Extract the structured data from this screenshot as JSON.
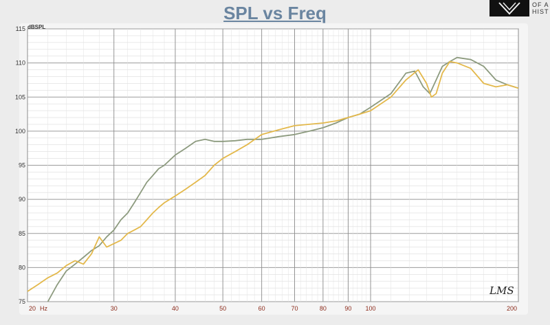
{
  "title": "SPL vs Freq",
  "logo": {
    "line1": "OF A",
    "line2": "HIST"
  },
  "signature": "LMS",
  "chart_data": {
    "type": "line",
    "title": "SPL vs Freq",
    "ylabel": "dBSPL",
    "xlabel": "",
    "x_unit": "Hz",
    "x_scale": "log",
    "xlim": [
      20,
      200
    ],
    "ylim": [
      75,
      115
    ],
    "grid": true,
    "y_ticks": [
      75,
      80,
      85,
      90,
      95,
      100,
      105,
      110,
      115
    ],
    "x_ticks": [
      20,
      30,
      40,
      50,
      60,
      70,
      80,
      90,
      100,
      200
    ],
    "x_tick_labels": [
      "20",
      "30",
      "40",
      "50",
      "60",
      "70",
      "80",
      "90",
      "100",
      "200"
    ],
    "series": [
      {
        "color": "#8c9a7e",
        "x": [
          22,
          23,
          24,
          25,
          26,
          27,
          28,
          29,
          30,
          31,
          32,
          33,
          34,
          35,
          36,
          37,
          38,
          40,
          42,
          44,
          46,
          48,
          50,
          53,
          56,
          60,
          65,
          70,
          75,
          80,
          85,
          90,
          95,
          100,
          110,
          118,
          123,
          128,
          132,
          136,
          140,
          145,
          150,
          160,
          170,
          180,
          190,
          200
        ],
        "y": [
          75,
          77.5,
          79.5,
          80.5,
          81.5,
          82.5,
          83.2,
          84.5,
          85.5,
          87,
          88,
          89.5,
          91,
          92.5,
          93.5,
          94.5,
          95,
          96.5,
          97.5,
          98.5,
          98.8,
          98.5,
          98.5,
          98.6,
          98.8,
          98.8,
          99.2,
          99.5,
          100,
          100.5,
          101.2,
          102,
          102.5,
          103.5,
          105.5,
          108.5,
          108.8,
          106.5,
          105.5,
          107.5,
          109.5,
          110.2,
          110.8,
          110.5,
          109.5,
          107.5,
          106.8,
          106.3
        ]
      },
      {
        "color": "#e3b84a",
        "x": [
          20,
          21,
          22,
          23,
          24,
          25,
          26,
          27,
          28,
          29,
          30,
          31,
          32,
          33,
          34,
          35,
          36,
          37,
          38,
          40,
          42,
          44,
          46,
          48,
          50,
          53,
          56,
          60,
          65,
          70,
          75,
          80,
          85,
          90,
          95,
          100,
          110,
          118,
          125,
          130,
          133,
          136,
          140,
          145,
          150,
          160,
          170,
          180,
          190,
          200
        ],
        "y": [
          76.5,
          77.5,
          78.5,
          79.2,
          80.3,
          81,
          80.5,
          82,
          84.5,
          83,
          83.5,
          84,
          85,
          85.5,
          86,
          87,
          88,
          88.8,
          89.5,
          90.5,
          91.5,
          92.5,
          93.5,
          95,
          96,
          97,
          98,
          99.5,
          100.2,
          100.8,
          101,
          101.2,
          101.5,
          102,
          102.5,
          103,
          105,
          107.5,
          109,
          107,
          105,
          105.5,
          108.5,
          110.2,
          110,
          109.2,
          107,
          106.5,
          106.8,
          106.3
        ]
      }
    ]
  }
}
